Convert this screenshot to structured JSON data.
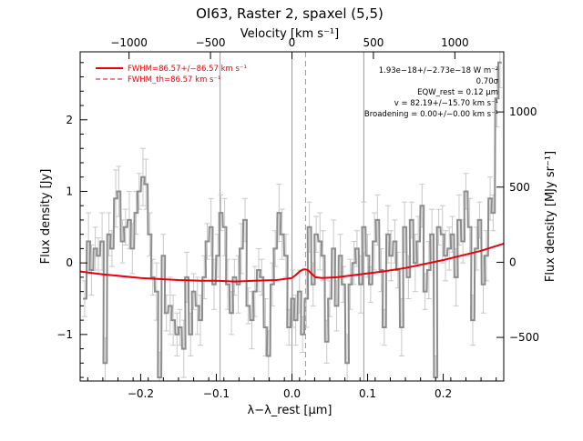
{
  "chart_data": {
    "type": "line",
    "title": "OI63, Raster 2, spaxel (5,5)",
    "xlabel": "λ−λ_rest [µm]",
    "ylabel": "Flux density [Jy]",
    "top_xlabel": "Velocity [km s⁻¹]",
    "right_ylabel": "Flux density [MJy sr⁻¹]",
    "xlim": [
      -0.28,
      0.28
    ],
    "ylim": [
      -1.65,
      2.95
    ],
    "x_ticks": [
      "−0.2",
      "−0.1",
      "0.0",
      "0.1",
      "0.2"
    ],
    "x_tick_values": [
      -0.2,
      -0.1,
      0.0,
      0.1,
      0.2
    ],
    "y_ticks": [
      "−1",
      "0",
      "1",
      "2"
    ],
    "y_tick_values": [
      -1,
      0,
      1,
      2
    ],
    "top_ticks": [
      "−1000",
      "−500",
      "0",
      "500",
      "1000"
    ],
    "top_tick_values": [
      -1000,
      -500,
      0,
      500,
      1000
    ],
    "right_ticks": [
      "−500",
      "0",
      "500",
      "1000"
    ],
    "right_tick_values": [
      -500,
      0,
      500,
      1000
    ],
    "vertical_lines": [
      -0.095,
      0.0,
      0.095
    ],
    "dashed_line": 0.018,
    "grid": false,
    "legend_position": "top-left",
    "legend": [
      {
        "label": "FWHM=86.57+/−86.57 km s⁻¹",
        "style": "solid",
        "color": "#e8000b"
      },
      {
        "label": "FWHM_th=86.57 km s⁻¹",
        "style": "dashed",
        "color": "#e8000b"
      }
    ],
    "annotations": [
      "1.93e−18+/−2.73e−18 W m⁻²",
      "0.70σ",
      "EQW_rest = 0.12 µm",
      "v = 82.19+/−15.70 km s⁻¹",
      "Broadening = 0.00+/−0.00 km s⁻¹"
    ],
    "series": [
      {
        "style": "step",
        "color": "#8c8c8c",
        "x": [
          -0.274,
          -0.269,
          -0.265,
          -0.26,
          -0.256,
          -0.251,
          -0.247,
          -0.242,
          -0.238,
          -0.233,
          -0.229,
          -0.224,
          -0.22,
          -0.215,
          -0.211,
          -0.206,
          -0.202,
          -0.197,
          -0.193,
          -0.188,
          -0.184,
          -0.179,
          -0.175,
          -0.17,
          -0.166,
          -0.161,
          -0.157,
          -0.152,
          -0.148,
          -0.143,
          -0.139,
          -0.134,
          -0.13,
          -0.125,
          -0.121,
          -0.116,
          -0.112,
          -0.107,
          -0.103,
          -0.098,
          -0.094,
          -0.089,
          -0.085,
          -0.08,
          -0.076,
          -0.071,
          -0.067,
          -0.062,
          -0.058,
          -0.053,
          -0.049,
          -0.044,
          -0.04,
          -0.035,
          -0.031,
          -0.026,
          -0.022,
          -0.017,
          -0.013,
          -0.008,
          -0.004,
          0.001,
          0.005,
          0.01,
          0.014,
          0.019,
          0.023,
          0.028,
          0.032,
          0.037,
          0.041,
          0.046,
          0.05,
          0.055,
          0.059,
          0.064,
          0.068,
          0.073,
          0.077,
          0.082,
          0.086,
          0.091,
          0.095,
          0.1,
          0.104,
          0.109,
          0.113,
          0.118,
          0.122,
          0.127,
          0.131,
          0.136,
          0.14,
          0.145,
          0.149,
          0.154,
          0.158,
          0.163,
          0.167,
          0.172,
          0.176,
          0.181,
          0.185,
          0.19,
          0.194,
          0.199,
          0.203,
          0.208,
          0.212,
          0.217,
          0.221,
          0.226,
          0.23,
          0.235,
          0.239,
          0.244,
          0.248,
          0.253,
          0.257,
          0.262,
          0.266,
          0.271,
          0.275
        ],
        "y": [
          -0.5,
          0.3,
          -0.1,
          0.2,
          0.1,
          0.3,
          -1.4,
          0.4,
          0.2,
          0.9,
          1.0,
          0.3,
          0.5,
          0.6,
          0.2,
          0.7,
          1.0,
          1.2,
          1.1,
          0.4,
          -0.2,
          -0.4,
          -1.6,
          0.1,
          -0.7,
          -0.6,
          -0.8,
          -1.0,
          -0.9,
          -1.2,
          -0.2,
          -1.0,
          -0.4,
          -0.6,
          -0.8,
          -0.2,
          0.3,
          0.5,
          -0.3,
          0.1,
          0.7,
          0.5,
          -0.3,
          -0.7,
          -0.2,
          -0.3,
          0.2,
          0.6,
          -0.6,
          -0.8,
          -0.4,
          -0.1,
          -0.2,
          -0.9,
          -1.3,
          -0.3,
          0.2,
          0.7,
          0.4,
          0.1,
          -0.9,
          -0.5,
          -0.8,
          -0.4,
          -1.0,
          -0.5,
          0.5,
          -0.3,
          0.4,
          0.3,
          0.1,
          -1.1,
          -0.5,
          0.2,
          -0.6,
          0.1,
          -0.3,
          -1.4,
          -0.3,
          0.0,
          0.2,
          -0.3,
          0.5,
          0.1,
          -0.3,
          0.3,
          0.6,
          -0.1,
          -0.9,
          0.4,
          0.1,
          0.3,
          -0.1,
          -0.9,
          0.5,
          -0.2,
          0.6,
          0.0,
          0.3,
          0.8,
          -0.4,
          -0.1,
          0.4,
          -1.6,
          0.5,
          0.4,
          0.1,
          0.2,
          0.4,
          -0.2,
          0.6,
          0.3,
          1.0,
          0.5,
          -0.8,
          0.2,
          0.6,
          -0.3,
          0.1,
          0.9,
          0.7,
          2.3,
          2.8
        ]
      },
      {
        "name": "FWHM=86.57+/−86.57 km s⁻¹",
        "style": "line",
        "color": "#e8000b",
        "x": [
          -0.28,
          -0.25,
          -0.2,
          -0.15,
          -0.12,
          -0.1,
          -0.075,
          -0.05,
          -0.02,
          0.0,
          0.005,
          0.01,
          0.015,
          0.018,
          0.021,
          0.026,
          0.031,
          0.04,
          0.06,
          0.09,
          0.12,
          0.15,
          0.2,
          0.25,
          0.28
        ],
        "y": [
          -0.12,
          -0.16,
          -0.21,
          -0.24,
          -0.25,
          -0.25,
          -0.26,
          -0.25,
          -0.24,
          -0.21,
          -0.17,
          -0.12,
          -0.09,
          -0.09,
          -0.1,
          -0.15,
          -0.2,
          -0.21,
          -0.2,
          -0.16,
          -0.12,
          -0.07,
          0.04,
          0.17,
          0.27
        ]
      }
    ]
  }
}
